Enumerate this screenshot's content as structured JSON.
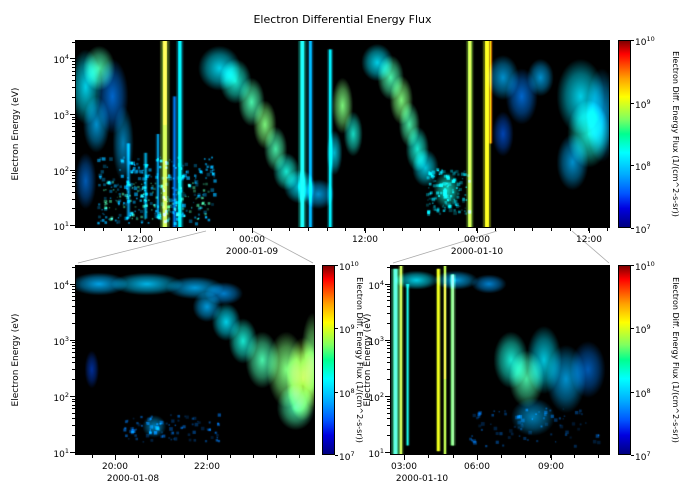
{
  "figure": {
    "title": "Electron Differential Energy Flux",
    "background": "#ffffff",
    "plot_bg": "#000000"
  },
  "colorbar_gradient": [
    {
      "c": "#7f0000",
      "f": 0
    },
    {
      "c": "#ff0000",
      "f": 0.07
    },
    {
      "c": "#ff9f00",
      "f": 0.2
    },
    {
      "c": "#ffff00",
      "f": 0.3
    },
    {
      "c": "#7fff60",
      "f": 0.42
    },
    {
      "c": "#00ff90",
      "f": 0.5
    },
    {
      "c": "#00ffff",
      "f": 0.6
    },
    {
      "c": "#00aaff",
      "f": 0.72
    },
    {
      "c": "#0055ff",
      "f": 0.82
    },
    {
      "c": "#0000e0",
      "f": 0.9
    },
    {
      "c": "#000080",
      "f": 1
    }
  ],
  "chart_data": [
    {
      "id": "top",
      "type": "heatmap",
      "title": "Electron Differential Energy Flux",
      "ylabel": "Electron Energy (eV)",
      "ylim_log10": [
        0.95,
        4.33
      ],
      "y_ticks": [
        {
          "base": "10",
          "exp": "4"
        },
        {
          "base": "10",
          "exp": "3"
        },
        {
          "base": "10",
          "exp": "2"
        },
        {
          "base": "10",
          "exp": "1"
        }
      ],
      "x_ticks": [
        {
          "label": "12:00",
          "f": 0.1215
        },
        {
          "label": "00:00",
          "f": 0.331
        },
        {
          "label": "12:00",
          "f": 0.542
        },
        {
          "label": "00:00",
          "f": 0.7514
        },
        {
          "label": "12:00",
          "f": 0.961
        }
      ],
      "x_dates": [
        {
          "label": "2000-01-09",
          "f": 0.331
        },
        {
          "label": "2000-01-10",
          "f": 0.7514
        }
      ],
      "colorbar": {
        "label": "Electron Diff. Energy Flux (1/(cm^2-s-sr))",
        "lim_log10": [
          7,
          10
        ],
        "ticks": [
          {
            "base": "10",
            "exp": "10",
            "f": 0
          },
          {
            "base": "10",
            "exp": "9",
            "f": 0.333
          },
          {
            "base": "10",
            "exp": "8",
            "f": 0.667
          },
          {
            "base": "10",
            "exp": "7",
            "f": 1
          }
        ]
      },
      "features": [
        {
          "t": "vline",
          "x": 0.168,
          "w": 0.008,
          "y0": 0,
          "y1": 1,
          "v": 0.55,
          "a": 0.9
        },
        {
          "t": "vline",
          "x": 0.168,
          "w": 0.003,
          "y0": 0,
          "y1": 0.45,
          "v": 0.75,
          "a": 0.9
        },
        {
          "t": "vline",
          "x": 0.168,
          "w": 0.004,
          "y0": 0,
          "y1": 0.05,
          "v": 0.95,
          "a": 0.9
        },
        {
          "t": "vline",
          "x": 0.196,
          "w": 0.006,
          "y0": 0,
          "y1": 1,
          "v": 0.35,
          "a": 0.85
        },
        {
          "t": "vline",
          "x": 0.186,
          "w": 0.004,
          "y0": 0.3,
          "y1": 1,
          "v": 0.25,
          "a": 0.7
        },
        {
          "t": "vline",
          "x": 0.425,
          "w": 0.007,
          "y0": 0,
          "y1": 1,
          "v": 0.4,
          "a": 0.9
        },
        {
          "t": "vline",
          "x": 0.44,
          "w": 0.005,
          "y0": 0,
          "y1": 1,
          "v": 0.3,
          "a": 0.8
        },
        {
          "t": "vline",
          "x": 0.477,
          "w": 0.005,
          "y0": 0.05,
          "y1": 1,
          "v": 0.35,
          "a": 0.8
        },
        {
          "t": "vline",
          "x": 0.738,
          "w": 0.006,
          "y0": 0,
          "y1": 1,
          "v": 0.55,
          "a": 0.95
        },
        {
          "t": "vline",
          "x": 0.77,
          "w": 0.007,
          "y0": 0,
          "y1": 1,
          "v": 0.6,
          "a": 0.95
        },
        {
          "t": "vline",
          "x": 0.777,
          "w": 0.003,
          "y0": 0,
          "y1": 0.55,
          "v": 0.75,
          "a": 0.85
        },
        {
          "t": "vline",
          "x": 0.1,
          "w": 0.004,
          "y0": 0.55,
          "y1": 0.95,
          "v": 0.3,
          "a": 0.6
        },
        {
          "t": "vline",
          "x": 0.132,
          "w": 0.004,
          "y0": 0.6,
          "y1": 0.95,
          "v": 0.32,
          "a": 0.6
        },
        {
          "t": "vline",
          "x": 0.155,
          "w": 0.004,
          "y0": 0.5,
          "y1": 0.95,
          "v": 0.3,
          "a": 0.6
        },
        {
          "t": "blob",
          "x": 0.02,
          "y": 0.25,
          "rx": 0.03,
          "ry": 0.2,
          "v": 0.35,
          "a": 0.9
        },
        {
          "t": "blob",
          "x": 0.045,
          "y": 0.15,
          "rx": 0.03,
          "ry": 0.12,
          "v": 0.45,
          "a": 0.9
        },
        {
          "t": "blob",
          "x": 0.04,
          "y": 0.45,
          "rx": 0.025,
          "ry": 0.15,
          "v": 0.3,
          "a": 0.8
        },
        {
          "t": "blob",
          "x": 0.07,
          "y": 0.3,
          "rx": 0.03,
          "ry": 0.2,
          "v": 0.25,
          "a": 0.8
        },
        {
          "t": "blob",
          "x": 0.09,
          "y": 0.55,
          "rx": 0.02,
          "ry": 0.2,
          "v": 0.3,
          "a": 0.7
        },
        {
          "t": "blob",
          "x": 0.02,
          "y": 0.75,
          "rx": 0.02,
          "ry": 0.15,
          "v": 0.25,
          "a": 0.7
        },
        {
          "t": "speckle",
          "x0": 0.04,
          "x1": 0.26,
          "y0": 0.62,
          "y1": 0.97,
          "n": 260,
          "v": 0.3,
          "a": 0.75,
          "seed": 7,
          "sz": 2.5
        },
        {
          "t": "speckle",
          "x0": 0.05,
          "x1": 0.25,
          "y0": 0.75,
          "y1": 0.95,
          "n": 140,
          "v": 0.45,
          "a": 0.6,
          "seed": 11,
          "sz": 2
        },
        {
          "t": "blob",
          "x": 0.27,
          "y": 0.15,
          "rx": 0.04,
          "ry": 0.12,
          "v": 0.35,
          "a": 0.9
        },
        {
          "t": "blob",
          "x": 0.3,
          "y": 0.22,
          "rx": 0.03,
          "ry": 0.12,
          "v": 0.4,
          "a": 0.9
        },
        {
          "t": "blob",
          "x": 0.33,
          "y": 0.33,
          "rx": 0.025,
          "ry": 0.13,
          "v": 0.45,
          "a": 0.95
        },
        {
          "t": "blob",
          "x": 0.355,
          "y": 0.45,
          "rx": 0.022,
          "ry": 0.13,
          "v": 0.5,
          "a": 0.95
        },
        {
          "t": "blob",
          "x": 0.375,
          "y": 0.58,
          "rx": 0.022,
          "ry": 0.12,
          "v": 0.45,
          "a": 0.9
        },
        {
          "t": "blob",
          "x": 0.395,
          "y": 0.7,
          "rx": 0.025,
          "ry": 0.1,
          "v": 0.4,
          "a": 0.9
        },
        {
          "t": "blob",
          "x": 0.42,
          "y": 0.78,
          "rx": 0.03,
          "ry": 0.09,
          "v": 0.35,
          "a": 0.85
        },
        {
          "t": "blob",
          "x": 0.455,
          "y": 0.82,
          "rx": 0.03,
          "ry": 0.08,
          "v": 0.3,
          "a": 0.8
        },
        {
          "t": "blob",
          "x": 0.5,
          "y": 0.35,
          "rx": 0.02,
          "ry": 0.15,
          "v": 0.5,
          "a": 0.95
        },
        {
          "t": "blob",
          "x": 0.52,
          "y": 0.5,
          "rx": 0.018,
          "ry": 0.12,
          "v": 0.4,
          "a": 0.85
        },
        {
          "t": "blob",
          "x": 0.485,
          "y": 0.6,
          "rx": 0.015,
          "ry": 0.12,
          "v": 0.35,
          "a": 0.8
        },
        {
          "t": "blob",
          "x": 0.565,
          "y": 0.12,
          "rx": 0.03,
          "ry": 0.1,
          "v": 0.35,
          "a": 0.9
        },
        {
          "t": "blob",
          "x": 0.59,
          "y": 0.2,
          "rx": 0.025,
          "ry": 0.12,
          "v": 0.45,
          "a": 0.95
        },
        {
          "t": "blob",
          "x": 0.61,
          "y": 0.32,
          "rx": 0.022,
          "ry": 0.13,
          "v": 0.5,
          "a": 0.95
        },
        {
          "t": "blob",
          "x": 0.625,
          "y": 0.45,
          "rx": 0.02,
          "ry": 0.12,
          "v": 0.45,
          "a": 0.9
        },
        {
          "t": "blob",
          "x": 0.64,
          "y": 0.58,
          "rx": 0.022,
          "ry": 0.12,
          "v": 0.4,
          "a": 0.9
        },
        {
          "t": "blob",
          "x": 0.655,
          "y": 0.68,
          "rx": 0.025,
          "ry": 0.1,
          "v": 0.35,
          "a": 0.85
        },
        {
          "t": "speckle",
          "x0": 0.655,
          "x1": 0.735,
          "y0": 0.68,
          "y1": 0.92,
          "n": 120,
          "v": 0.35,
          "a": 0.7,
          "seed": 23,
          "sz": 2.5
        },
        {
          "t": "blob",
          "x": 0.695,
          "y": 0.8,
          "rx": 0.025,
          "ry": 0.1,
          "v": 0.4,
          "a": 0.8
        },
        {
          "t": "blob",
          "x": 0.8,
          "y": 0.2,
          "rx": 0.03,
          "ry": 0.12,
          "v": 0.3,
          "a": 0.8
        },
        {
          "t": "blob",
          "x": 0.835,
          "y": 0.3,
          "rx": 0.03,
          "ry": 0.15,
          "v": 0.25,
          "a": 0.8
        },
        {
          "t": "blob",
          "x": 0.87,
          "y": 0.2,
          "rx": 0.025,
          "ry": 0.1,
          "v": 0.3,
          "a": 0.8
        },
        {
          "t": "blob",
          "x": 0.8,
          "y": 0.5,
          "rx": 0.02,
          "ry": 0.12,
          "v": 0.22,
          "a": 0.7
        },
        {
          "t": "blob",
          "x": 0.945,
          "y": 0.3,
          "rx": 0.045,
          "ry": 0.2,
          "v": 0.35,
          "a": 0.9
        },
        {
          "t": "blob",
          "x": 0.96,
          "y": 0.5,
          "rx": 0.04,
          "ry": 0.18,
          "v": 0.4,
          "a": 0.9
        },
        {
          "t": "blob",
          "x": 0.93,
          "y": 0.65,
          "rx": 0.03,
          "ry": 0.15,
          "v": 0.3,
          "a": 0.8
        },
        {
          "t": "blob",
          "x": 0.985,
          "y": 0.4,
          "rx": 0.03,
          "ry": 0.25,
          "v": 0.3,
          "a": 0.8
        }
      ]
    },
    {
      "id": "bl",
      "type": "heatmap",
      "title": "",
      "ylabel": "Electron Energy (eV)",
      "ylim_log10": [
        0.95,
        4.33
      ],
      "y_ticks": [
        {
          "base": "10",
          "exp": "4"
        },
        {
          "base": "10",
          "exp": "3"
        },
        {
          "base": "10",
          "exp": "2"
        },
        {
          "base": "10",
          "exp": "1"
        }
      ],
      "x_ticks": [
        {
          "label": "20:00",
          "f": 0.167
        },
        {
          "label": "22:00",
          "f": 0.55
        }
      ],
      "x_dates": [
        {
          "label": "2000-01-08",
          "f": 0.242
        }
      ],
      "colorbar": {
        "label": "Electron Diff. Energy Flux (1/(cm^2-s-sr))",
        "lim_log10": [
          7,
          10
        ],
        "ticks": [
          {
            "base": "10",
            "exp": "10",
            "f": 0
          },
          {
            "base": "10",
            "exp": "9",
            "f": 0.333
          },
          {
            "base": "10",
            "exp": "8",
            "f": 0.667
          },
          {
            "base": "10",
            "exp": "7",
            "f": 1
          }
        ]
      },
      "features": [
        {
          "t": "blob",
          "x": 0.1,
          "y": 0.1,
          "rx": 0.12,
          "ry": 0.06,
          "v": 0.3,
          "a": 0.9
        },
        {
          "t": "blob",
          "x": 0.3,
          "y": 0.1,
          "rx": 0.15,
          "ry": 0.06,
          "v": 0.32,
          "a": 0.9
        },
        {
          "t": "blob",
          "x": 0.5,
          "y": 0.12,
          "rx": 0.12,
          "ry": 0.06,
          "v": 0.3,
          "a": 0.85
        },
        {
          "t": "blob",
          "x": 0.62,
          "y": 0.15,
          "rx": 0.08,
          "ry": 0.06,
          "v": 0.28,
          "a": 0.8
        },
        {
          "t": "blob",
          "x": 0.55,
          "y": 0.22,
          "rx": 0.06,
          "ry": 0.08,
          "v": 0.3,
          "a": 0.85
        },
        {
          "t": "blob",
          "x": 0.63,
          "y": 0.3,
          "rx": 0.06,
          "ry": 0.1,
          "v": 0.35,
          "a": 0.9
        },
        {
          "t": "blob",
          "x": 0.7,
          "y": 0.4,
          "rx": 0.06,
          "ry": 0.12,
          "v": 0.4,
          "a": 0.9
        },
        {
          "t": "blob",
          "x": 0.78,
          "y": 0.5,
          "rx": 0.07,
          "ry": 0.15,
          "v": 0.45,
          "a": 0.95
        },
        {
          "t": "blob",
          "x": 0.88,
          "y": 0.55,
          "rx": 0.08,
          "ry": 0.2,
          "v": 0.5,
          "a": 1
        },
        {
          "t": "blob",
          "x": 0.95,
          "y": 0.6,
          "rx": 0.07,
          "ry": 0.22,
          "v": 0.55,
          "a": 1
        },
        {
          "t": "blob",
          "x": 0.92,
          "y": 0.75,
          "rx": 0.08,
          "ry": 0.12,
          "v": 0.45,
          "a": 0.9
        },
        {
          "t": "blob",
          "x": 0.99,
          "y": 0.5,
          "rx": 0.05,
          "ry": 0.25,
          "v": 0.5,
          "a": 0.9
        },
        {
          "t": "speckle",
          "x0": 0.2,
          "x1": 0.6,
          "y0": 0.78,
          "y1": 0.93,
          "n": 90,
          "v": 0.25,
          "a": 0.6,
          "seed": 5,
          "sz": 2.5
        },
        {
          "t": "blob",
          "x": 0.33,
          "y": 0.85,
          "rx": 0.05,
          "ry": 0.06,
          "v": 0.3,
          "a": 0.7
        },
        {
          "t": "blob",
          "x": 0.07,
          "y": 0.55,
          "rx": 0.03,
          "ry": 0.1,
          "v": 0.2,
          "a": 0.6
        }
      ]
    },
    {
      "id": "br",
      "type": "heatmap",
      "title": "",
      "ylabel": "Electron Energy (eV)",
      "ylim_log10": [
        0.95,
        4.33
      ],
      "y_ticks": [
        {
          "base": "10",
          "exp": "4"
        },
        {
          "base": "10",
          "exp": "3"
        },
        {
          "base": "10",
          "exp": "2"
        },
        {
          "base": "10",
          "exp": "1"
        }
      ],
      "x_ticks": [
        {
          "label": "03:00",
          "f": 0.064
        },
        {
          "label": "06:00",
          "f": 0.395
        },
        {
          "label": "09:00",
          "f": 0.732
        }
      ],
      "x_dates": [
        {
          "label": "2000-01-10",
          "f": 0.145
        }
      ],
      "colorbar": {
        "label": "Electron Diff. Energy Flux (1/(cm^2-s-sr))",
        "lim_log10": [
          7,
          10
        ],
        "ticks": [
          {
            "base": "10",
            "exp": "10",
            "f": 0
          },
          {
            "base": "10",
            "exp": "9",
            "f": 0.333
          },
          {
            "base": "10",
            "exp": "8",
            "f": 0.667
          },
          {
            "base": "10",
            "exp": "7",
            "f": 1
          }
        ]
      },
      "features": [
        {
          "t": "vline",
          "x": 0.025,
          "w": 0.018,
          "y0": 0.02,
          "y1": 1,
          "v": 0.45,
          "a": 0.95
        },
        {
          "t": "vline",
          "x": 0.05,
          "w": 0.01,
          "y0": 0,
          "y1": 1,
          "v": 0.55,
          "a": 0.9
        },
        {
          "t": "vline",
          "x": 0.08,
          "w": 0.008,
          "y0": 0.1,
          "y1": 0.95,
          "v": 0.4,
          "a": 0.8
        },
        {
          "t": "vline",
          "x": 0.22,
          "w": 0.01,
          "y0": 0.02,
          "y1": 0.98,
          "v": 0.6,
          "a": 0.95
        },
        {
          "t": "vline",
          "x": 0.25,
          "w": 0.008,
          "y0": 0,
          "y1": 1,
          "v": 0.55,
          "a": 0.9
        },
        {
          "t": "vline",
          "x": 0.25,
          "w": 0.004,
          "y0": 0.1,
          "y1": 0.6,
          "v": 0.72,
          "a": 0.85
        },
        {
          "t": "vline",
          "x": 0.285,
          "w": 0.012,
          "y0": 0.05,
          "y1": 0.95,
          "v": 0.5,
          "a": 0.95
        },
        {
          "t": "blob",
          "x": 0.12,
          "y": 0.08,
          "rx": 0.1,
          "ry": 0.05,
          "v": 0.35,
          "a": 0.9
        },
        {
          "t": "blob",
          "x": 0.3,
          "y": 0.08,
          "rx": 0.1,
          "ry": 0.05,
          "v": 0.3,
          "a": 0.85
        },
        {
          "t": "blob",
          "x": 0.45,
          "y": 0.1,
          "rx": 0.08,
          "ry": 0.05,
          "v": 0.28,
          "a": 0.8
        },
        {
          "t": "blob",
          "x": 0.55,
          "y": 0.5,
          "rx": 0.08,
          "ry": 0.15,
          "v": 0.4,
          "a": 0.9
        },
        {
          "t": "blob",
          "x": 0.62,
          "y": 0.6,
          "rx": 0.08,
          "ry": 0.15,
          "v": 0.45,
          "a": 0.9
        },
        {
          "t": "blob",
          "x": 0.7,
          "y": 0.5,
          "rx": 0.08,
          "ry": 0.18,
          "v": 0.35,
          "a": 0.85
        },
        {
          "t": "blob",
          "x": 0.8,
          "y": 0.6,
          "rx": 0.09,
          "ry": 0.18,
          "v": 0.3,
          "a": 0.8
        },
        {
          "t": "blob",
          "x": 0.9,
          "y": 0.55,
          "rx": 0.08,
          "ry": 0.15,
          "v": 0.25,
          "a": 0.7
        },
        {
          "t": "blob",
          "x": 0.65,
          "y": 0.8,
          "rx": 0.1,
          "ry": 0.1,
          "v": 0.3,
          "a": 0.7
        },
        {
          "t": "speckle",
          "x0": 0.35,
          "x1": 0.95,
          "y0": 0.75,
          "y1": 0.95,
          "n": 80,
          "v": 0.25,
          "a": 0.5,
          "seed": 9,
          "sz": 2.5
        }
      ]
    }
  ]
}
